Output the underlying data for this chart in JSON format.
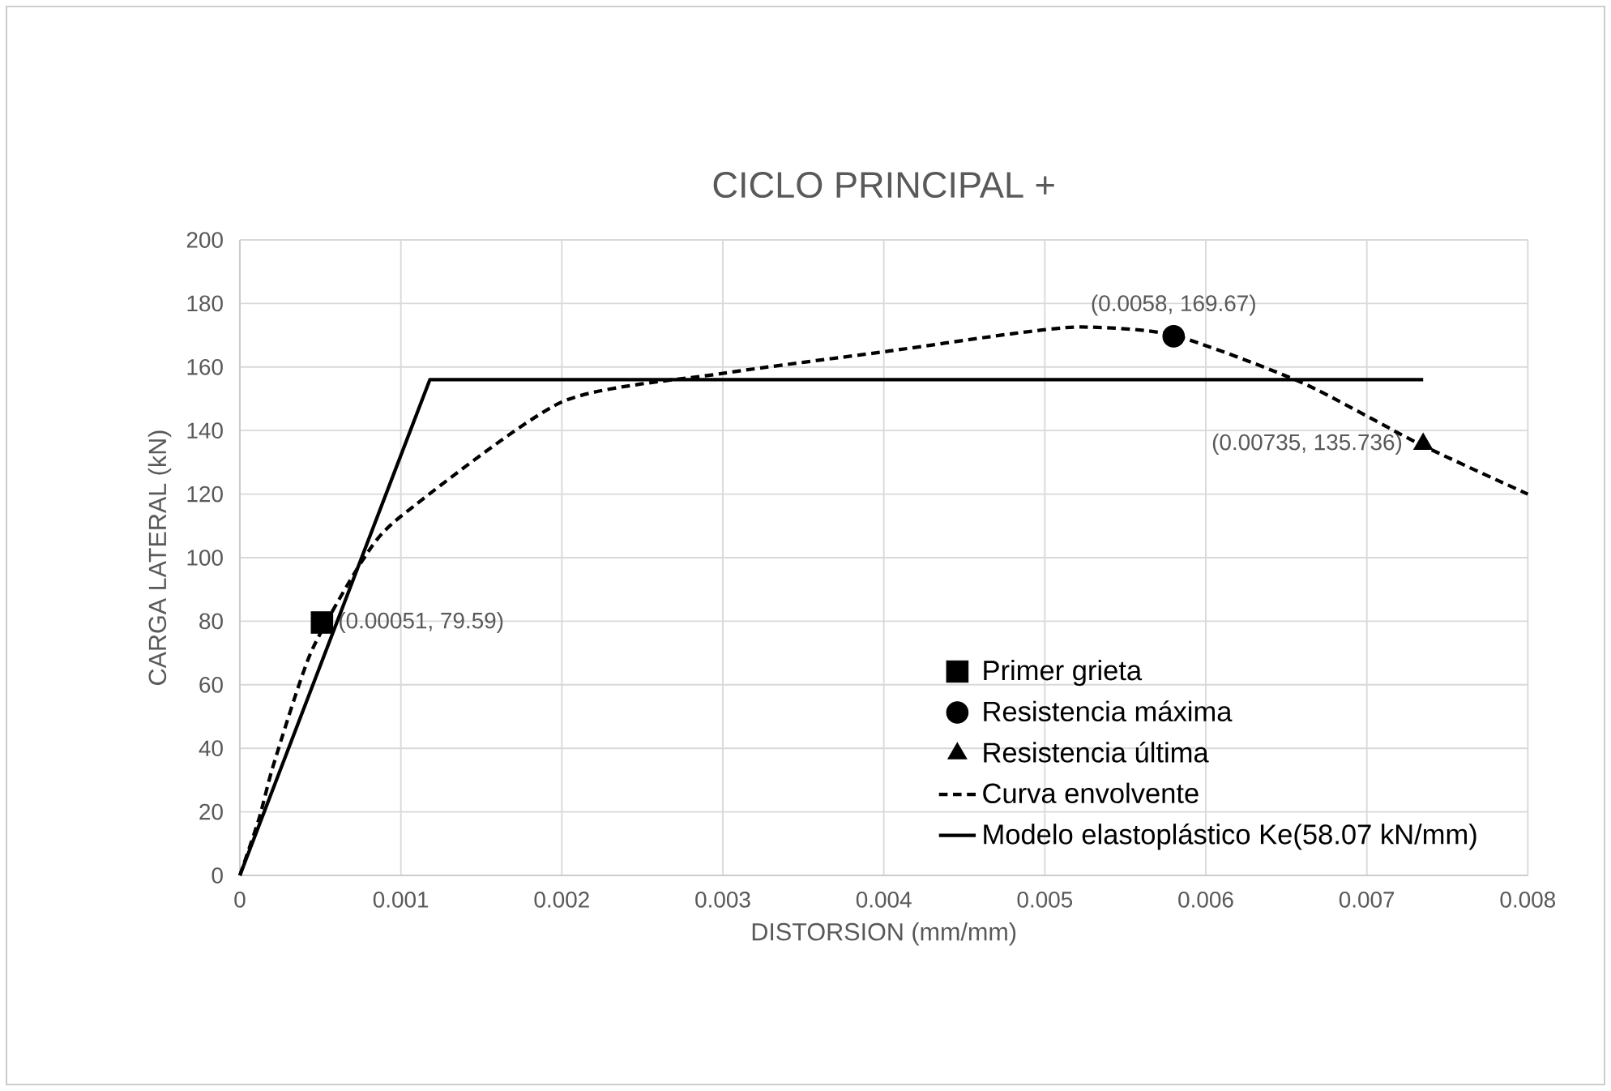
{
  "chart_data": {
    "type": "line",
    "title": "CICLO PRINCIPAL +",
    "xlabel": "DISTORSION (mm/mm)",
    "ylabel": "CARGA LATERAL (kN)",
    "xlim": [
      0,
      0.008
    ],
    "ylim": [
      0,
      200
    ],
    "xticks": [
      0,
      0.001,
      0.002,
      0.003,
      0.004,
      0.005,
      0.006,
      0.007,
      0.008
    ],
    "yticks": [
      0,
      20,
      40,
      60,
      80,
      100,
      120,
      140,
      160,
      180,
      200
    ],
    "grid": true,
    "legend": "bottom right",
    "series": [
      {
        "name": "Primer grieta",
        "type": "scatter",
        "marker": "square",
        "color": "#000000",
        "x": [
          0.00051
        ],
        "values": [
          79.59
        ],
        "value_labels": [
          "(0.00051, 79.59)"
        ]
      },
      {
        "name": "Resistencia máxima",
        "type": "scatter",
        "marker": "circle",
        "color": "#000000",
        "x": [
          0.0058
        ],
        "values": [
          169.67
        ],
        "value_labels": [
          "(0.0058, 169.67)"
        ]
      },
      {
        "name": "Resistencia última",
        "type": "scatter",
        "marker": "triangle",
        "color": "#000000",
        "x": [
          0.00735
        ],
        "values": [
          135.736
        ],
        "value_labels": [
          "(0.00735, 135.736)"
        ]
      },
      {
        "name": "Curva envolvente",
        "line_style": "dashed",
        "color": "#000000",
        "x": [
          0,
          0.00012,
          0.00021,
          0.00044,
          0.00076,
          0.001,
          0.002,
          0.003,
          0.00403,
          0.0048,
          0.00523,
          0.0058,
          0.0066,
          0.00733,
          0.008
        ],
        "values": [
          0,
          18,
          35,
          70,
          99,
          113,
          149,
          158,
          165,
          170.5,
          172.6,
          170,
          155,
          135.7,
          120
        ]
      },
      {
        "name": "Modelo elastoplástico  Ke(58.07 kN/mm)",
        "type": "line",
        "line_style": "solid",
        "color": "#000000",
        "x": [
          0,
          0.00118,
          0.00735
        ],
        "values": [
          0,
          156,
          156
        ]
      }
    ]
  }
}
